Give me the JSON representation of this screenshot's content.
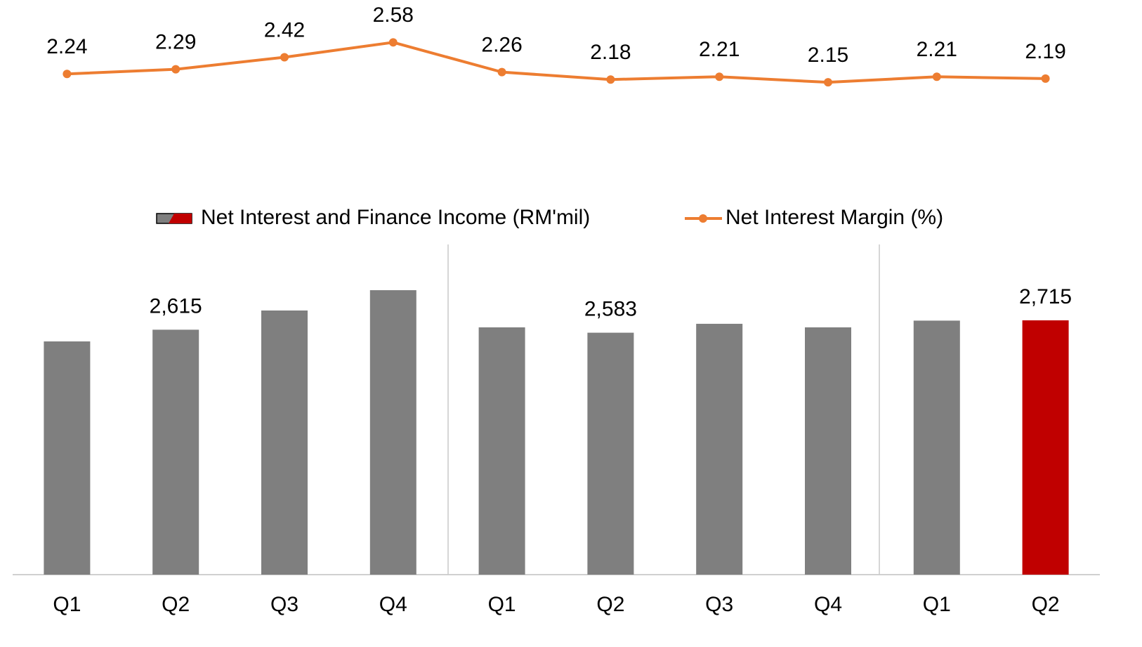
{
  "chart_data": {
    "type": "bar_line",
    "categories": [
      "Q1",
      "Q2",
      "Q3",
      "Q4",
      "Q1",
      "Q2",
      "Q3",
      "Q4",
      "Q1",
      "Q2"
    ],
    "series": [
      {
        "name": "Net Interest and Finance Income (RM'mil)",
        "type": "bar",
        "color": "#7f7f7f",
        "colors": [
          "#7f7f7f",
          "#7f7f7f",
          "#7f7f7f",
          "#7f7f7f",
          "#7f7f7f",
          "#7f7f7f",
          "#7f7f7f",
          "#7f7f7f",
          "#7f7f7f",
          "#c00000"
        ],
        "values": [
          2490,
          2615,
          2820,
          3037,
          2640,
          2583,
          2678,
          2640,
          2712,
          2715
        ],
        "value_labels": [
          null,
          "2,615",
          null,
          null,
          null,
          "2,583",
          null,
          null,
          null,
          "2,715"
        ]
      },
      {
        "name": "Net Interest Margin (%)",
        "type": "line",
        "axis": "y2",
        "color": "#ed7d31",
        "values": [
          2.24,
          2.29,
          2.42,
          2.58,
          2.26,
          2.18,
          2.21,
          2.15,
          2.21,
          2.19
        ]
      }
    ],
    "ylim": [
      0,
      6000
    ],
    "y2lim": [
      -3.15,
      2.9
    ],
    "legend": "middle"
  }
}
